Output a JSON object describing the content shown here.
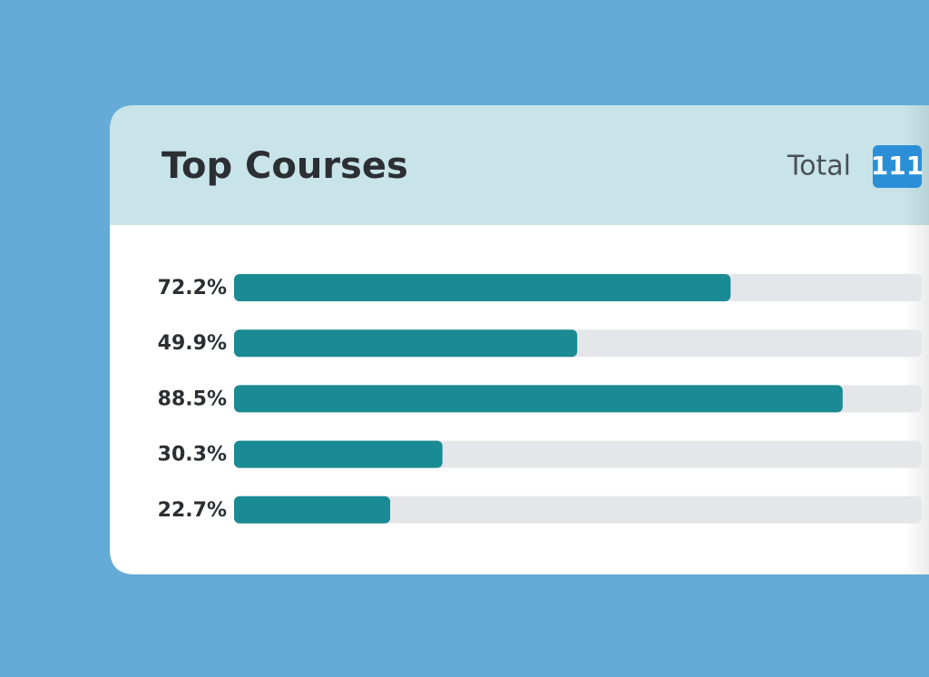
{
  "header": {
    "title": "Top Courses",
    "total_label": "Total",
    "total": "111"
  },
  "chart_data": {
    "type": "bar",
    "orientation": "horizontal",
    "values": [
      72.2,
      49.9,
      88.5,
      30.3,
      22.7
    ],
    "value_labels": [
      "72.2%",
      "49.9%",
      "88.5%",
      "30.3%",
      "22.7%"
    ],
    "xlim": [
      0,
      100
    ],
    "color": "#1a8a94",
    "track_color": "#e4e6e9"
  }
}
